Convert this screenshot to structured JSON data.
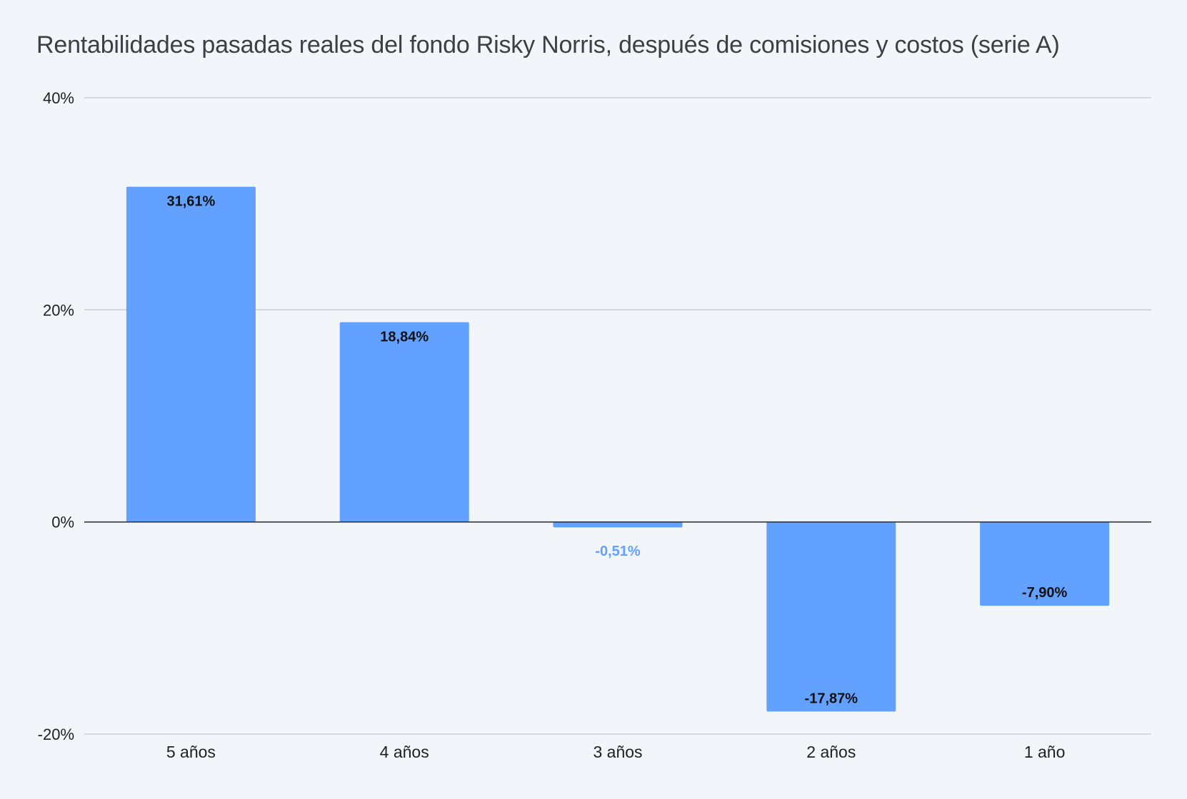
{
  "chart_data": {
    "type": "bar",
    "title": "Rentabilidades pasadas reales del fondo Risky Norris, después de comisiones y costos (serie A)",
    "xlabel": "",
    "ylabel": "",
    "categories": [
      "5 años",
      "4 años",
      "3 años",
      "2 años",
      "1 año"
    ],
    "values": [
      31.61,
      18.84,
      -0.51,
      -17.87,
      -7.9
    ],
    "data_labels": [
      "31,61%",
      "18,84%",
      "-0,51%",
      "-17,87%",
      "-7,90%"
    ],
    "ylim": [
      -20,
      40
    ],
    "y_ticks": [
      40,
      20,
      0,
      -20
    ],
    "y_tick_labels": [
      "40%",
      "20%",
      "0%",
      "-20%"
    ],
    "grid": true,
    "legend": "none",
    "colors": {
      "bar": "#62a1ff",
      "grid": "#c4c8cf",
      "zero_line": "#333333",
      "label_inside": "#111111",
      "label_outside": "#62a1ff"
    }
  }
}
